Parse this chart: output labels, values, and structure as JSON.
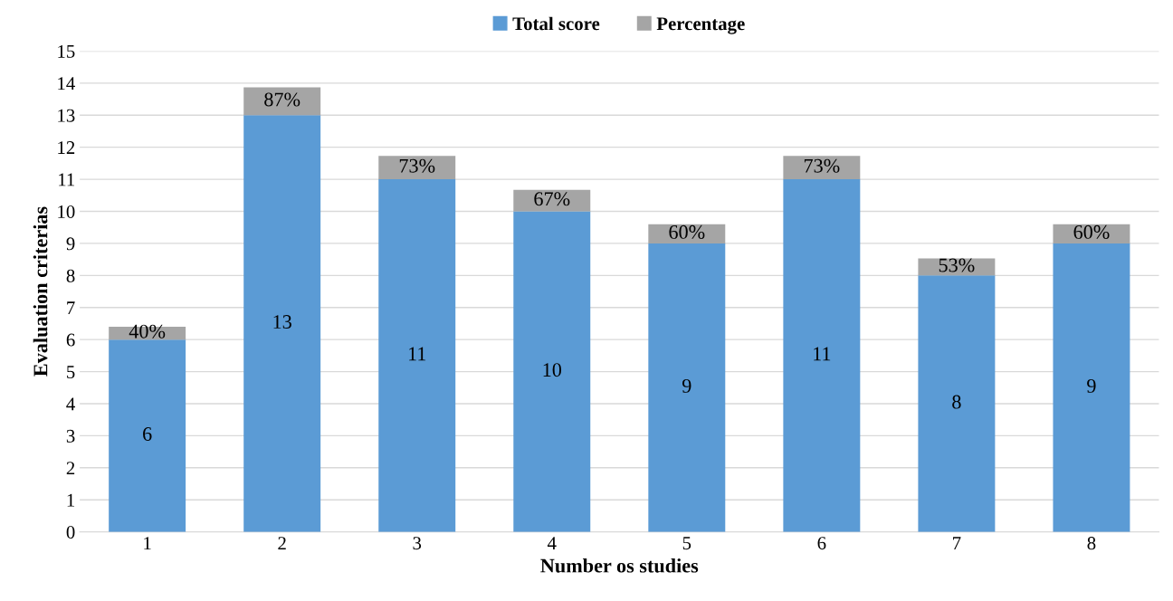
{
  "chart_data": {
    "type": "bar",
    "stacked": true,
    "xlabel": "Number os studies",
    "ylabel": "Evaluation criterias",
    "categories": [
      "1",
      "2",
      "3",
      "4",
      "5",
      "6",
      "7",
      "8"
    ],
    "series": [
      {
        "name": "Total score",
        "color": "#5b9bd5",
        "values": [
          6,
          13,
          11,
          10,
          9,
          11,
          8,
          9
        ],
        "value_labels": [
          "6",
          "13",
          "11",
          "10",
          "9",
          "11",
          "8",
          "9"
        ]
      },
      {
        "name": "Percentage",
        "color": "#a5a5a5",
        "values": [
          0.4,
          0.87,
          0.73,
          0.67,
          0.6,
          0.73,
          0.53,
          0.6
        ],
        "value_labels": [
          "40%",
          "87%",
          "73%",
          "67%",
          "60%",
          "73%",
          "53%",
          "60%"
        ]
      }
    ],
    "ylim": [
      0,
      15
    ],
    "yticks": [
      0,
      1,
      2,
      3,
      4,
      5,
      6,
      7,
      8,
      9,
      10,
      11,
      12,
      13,
      14,
      15
    ],
    "grid": "y",
    "legend": "top"
  }
}
